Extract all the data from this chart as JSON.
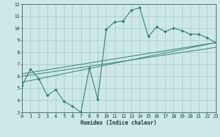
{
  "bg_color": "#cde8e8",
  "grid_color": "#aacccc",
  "line_color": "#2e7d6e",
  "xlabel": "Humidex (Indice chaleur)",
  "ylim": [
    3,
    12
  ],
  "xlim": [
    0,
    23
  ],
  "yticks": [
    3,
    4,
    5,
    6,
    7,
    8,
    9,
    10,
    11,
    12
  ],
  "xticks": [
    0,
    1,
    2,
    3,
    4,
    5,
    6,
    7,
    8,
    9,
    10,
    11,
    12,
    13,
    14,
    15,
    16,
    17,
    18,
    19,
    20,
    21,
    22,
    23
  ],
  "scatter_x": [
    0,
    1,
    2,
    3,
    4,
    5,
    6,
    7,
    8,
    9,
    10,
    11,
    12,
    13,
    14,
    15,
    16,
    17,
    18,
    19,
    20,
    21,
    22,
    23
  ],
  "scatter_y": [
    5.2,
    6.6,
    5.8,
    4.4,
    4.9,
    3.9,
    3.5,
    3.0,
    6.7,
    4.1,
    9.9,
    10.5,
    10.6,
    11.5,
    11.7,
    9.3,
    10.1,
    9.7,
    10.0,
    9.8,
    9.5,
    9.5,
    9.2,
    8.8
  ],
  "line1_x": [
    0,
    23
  ],
  "line1_y": [
    5.5,
    8.8
  ],
  "line2_x": [
    0,
    23
  ],
  "line2_y": [
    6.2,
    8.8
  ],
  "line3_x": [
    0,
    23
  ],
  "line3_y": [
    6.0,
    8.4
  ]
}
